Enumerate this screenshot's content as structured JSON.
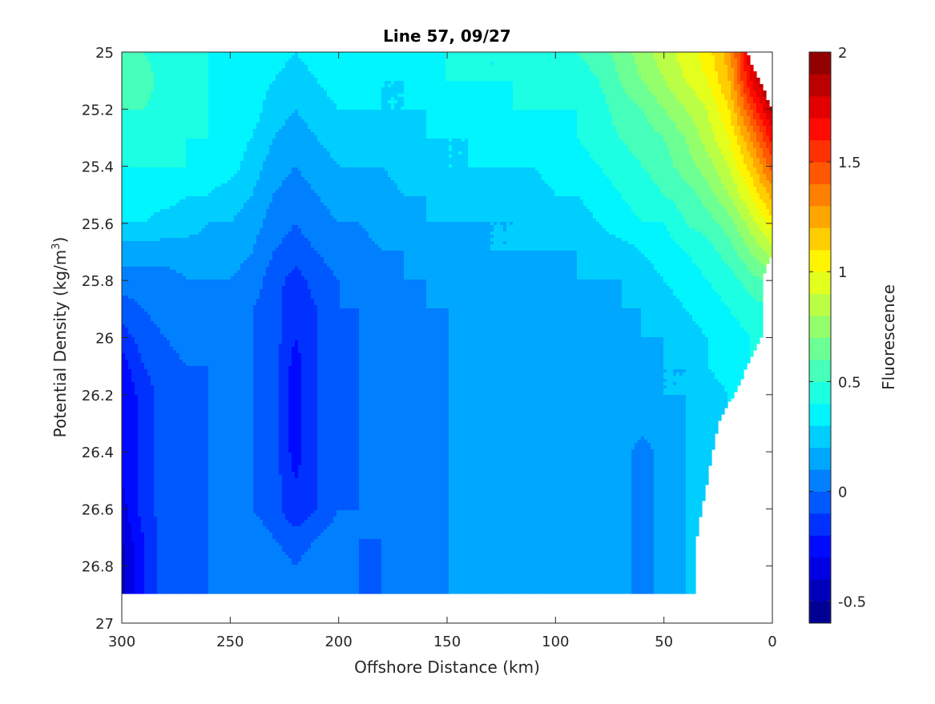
{
  "chart_data": {
    "type": "heatmap",
    "subtype": "filled-contour",
    "title": "Line 57, 09/27",
    "xlabel": "Offshore Distance (km)",
    "ylabel_prefix": "Potential Density (kg/m",
    "ylabel_sup": "3",
    "ylabel_suffix": ")",
    "colorbar_label": "Fluorescence",
    "colormap": "jet",
    "xlim": [
      300,
      0
    ],
    "ylim": [
      25,
      27
    ],
    "y_reversed": true,
    "x_ticks": [
      300,
      250,
      200,
      150,
      100,
      50,
      0
    ],
    "y_ticks": [
      "25",
      "25.2",
      "25.4",
      "25.6",
      "25.8",
      "26",
      "26.2",
      "26.4",
      "26.6",
      "26.8",
      "27"
    ],
    "colorbar_range": [
      -0.6,
      2.0
    ],
    "colorbar_ticks": [
      "-0.5",
      "0",
      "0.5",
      "1",
      "1.5",
      "2"
    ],
    "colorbar_tick_values": [
      -0.5,
      0,
      0.5,
      1,
      1.5,
      2
    ],
    "level_step": 0.1,
    "data_extent_x": [
      0,
      300
    ],
    "data_extent_y": [
      25,
      26.9
    ],
    "x": [
      300,
      290,
      280,
      270,
      260,
      250,
      240,
      230,
      220,
      210,
      200,
      190,
      180,
      170,
      160,
      150,
      140,
      130,
      120,
      110,
      100,
      90,
      80,
      70,
      60,
      50,
      40,
      30,
      20,
      10,
      0
    ],
    "y": [
      25.0,
      25.1,
      25.2,
      25.3,
      25.4,
      25.5,
      25.6,
      25.7,
      25.8,
      25.9,
      26.0,
      26.1,
      26.2,
      26.3,
      26.4,
      26.5,
      26.6,
      26.7,
      26.8,
      26.9
    ],
    "z": [
      [
        0.55,
        0.5,
        0.45,
        0.45,
        0.4,
        0.35,
        0.35,
        0.35,
        0.3,
        0.35,
        0.4,
        0.4,
        0.35,
        0.35,
        0.4,
        0.4,
        0.4,
        0.4,
        0.4,
        0.45,
        0.45,
        0.5,
        0.55,
        0.65,
        0.75,
        0.85,
        0.95,
        1.05,
        1.25,
        1.8,
        2.0
      ],
      [
        0.55,
        0.55,
        0.45,
        0.45,
        0.4,
        0.35,
        0.35,
        0.3,
        0.25,
        0.3,
        0.35,
        0.35,
        0.3,
        0.3,
        0.35,
        0.4,
        0.4,
        0.4,
        0.4,
        0.4,
        0.45,
        0.45,
        0.5,
        0.6,
        0.7,
        0.8,
        0.9,
        1.0,
        1.2,
        1.7,
        2.0
      ],
      [
        0.5,
        0.5,
        0.45,
        0.45,
        0.4,
        0.35,
        0.35,
        0.25,
        0.2,
        0.25,
        0.3,
        0.3,
        0.3,
        0.3,
        0.3,
        0.35,
        0.35,
        0.35,
        0.4,
        0.4,
        0.4,
        0.4,
        0.45,
        0.55,
        0.6,
        0.7,
        0.8,
        0.9,
        1.1,
        1.5,
        1.85
      ],
      [
        0.45,
        0.45,
        0.45,
        0.4,
        0.4,
        0.35,
        0.3,
        0.2,
        0.15,
        0.2,
        0.25,
        0.25,
        0.25,
        0.25,
        0.3,
        0.3,
        0.3,
        0.35,
        0.35,
        0.35,
        0.35,
        0.4,
        0.45,
        0.5,
        0.55,
        0.6,
        0.7,
        0.85,
        1.0,
        1.3,
        1.65
      ],
      [
        0.4,
        0.4,
        0.4,
        0.4,
        0.35,
        0.35,
        0.25,
        0.15,
        0.1,
        0.15,
        0.2,
        0.2,
        0.2,
        0.25,
        0.25,
        0.3,
        0.3,
        0.3,
        0.3,
        0.3,
        0.35,
        0.35,
        0.4,
        0.45,
        0.5,
        0.55,
        0.65,
        0.75,
        0.9,
        1.15,
        1.45
      ],
      [
        0.35,
        0.35,
        0.35,
        0.3,
        0.3,
        0.25,
        0.2,
        0.1,
        0.05,
        0.1,
        0.15,
        0.15,
        0.15,
        0.2,
        0.2,
        0.25,
        0.25,
        0.25,
        0.25,
        0.25,
        0.3,
        0.3,
        0.35,
        0.4,
        0.45,
        0.5,
        0.55,
        0.65,
        0.8,
        1.0,
        1.25
      ],
      [
        0.3,
        0.3,
        0.25,
        0.25,
        0.2,
        0.2,
        0.15,
        0.05,
        0.0,
        0.05,
        0.1,
        0.1,
        0.15,
        0.15,
        0.2,
        0.2,
        0.2,
        0.2,
        0.2,
        0.25,
        0.25,
        0.25,
        0.3,
        0.35,
        0.4,
        0.4,
        0.5,
        0.55,
        0.65,
        0.85,
        1.05
      ],
      [
        0.15,
        0.15,
        0.15,
        0.15,
        0.15,
        0.15,
        0.1,
        0.0,
        -0.05,
        0.0,
        0.05,
        0.05,
        0.1,
        0.1,
        0.15,
        0.15,
        0.15,
        0.2,
        0.2,
        0.2,
        0.2,
        0.2,
        0.25,
        0.25,
        0.3,
        0.35,
        0.4,
        0.45,
        0.55,
        0.7,
        0.85
      ],
      [
        0.05,
        0.05,
        0.05,
        0.1,
        0.1,
        0.1,
        0.05,
        -0.05,
        -0.15,
        -0.05,
        0.0,
        0.05,
        0.05,
        0.1,
        0.1,
        0.15,
        0.15,
        0.15,
        0.15,
        0.15,
        0.15,
        0.2,
        0.2,
        0.2,
        0.25,
        0.3,
        0.35,
        0.4,
        0.45,
        0.55,
        0.65
      ],
      [
        -0.05,
        0.0,
        0.05,
        0.05,
        0.05,
        0.05,
        0.0,
        -0.05,
        -0.2,
        -0.1,
        0.0,
        0.0,
        0.05,
        0.05,
        0.1,
        0.1,
        0.15,
        0.15,
        0.15,
        0.15,
        0.15,
        0.15,
        0.15,
        0.2,
        0.2,
        0.25,
        0.3,
        0.35,
        0.4,
        0.45,
        0.5
      ],
      [
        -0.15,
        -0.05,
        0.0,
        0.05,
        0.05,
        0.05,
        0.0,
        -0.05,
        -0.2,
        -0.1,
        0.0,
        0.0,
        0.05,
        0.05,
        0.1,
        0.1,
        0.15,
        0.15,
        0.15,
        0.15,
        0.15,
        0.15,
        0.15,
        0.15,
        0.2,
        0.2,
        0.25,
        0.3,
        0.35,
        0.4,
        0.45
      ],
      [
        -0.25,
        -0.1,
        -0.05,
        0.0,
        0.0,
        0.05,
        0.0,
        -0.05,
        -0.25,
        -0.1,
        0.0,
        0.0,
        0.05,
        0.05,
        0.05,
        0.1,
        0.15,
        0.15,
        0.15,
        0.15,
        0.15,
        0.15,
        0.15,
        0.15,
        0.15,
        0.2,
        0.2,
        0.3,
        0.35,
        0.4,
        0.4
      ],
      [
        -0.3,
        -0.15,
        -0.05,
        0.0,
        0.0,
        0.05,
        0.0,
        -0.05,
        -0.25,
        -0.1,
        0.0,
        0.0,
        0.05,
        0.05,
        0.05,
        0.1,
        0.15,
        0.15,
        0.15,
        0.15,
        0.15,
        0.15,
        0.15,
        0.15,
        0.15,
        0.2,
        0.2,
        0.25,
        0.3,
        0.35,
        0.4
      ],
      [
        -0.3,
        -0.15,
        -0.05,
        0.0,
        0.0,
        0.05,
        0.0,
        -0.05,
        -0.25,
        -0.1,
        0.0,
        0.0,
        0.05,
        0.05,
        0.05,
        0.1,
        0.15,
        0.15,
        0.15,
        0.15,
        0.15,
        0.15,
        0.15,
        0.15,
        0.15,
        0.15,
        0.2,
        0.25,
        0.3,
        0.35,
        0.35
      ],
      [
        -0.3,
        -0.15,
        -0.05,
        0.0,
        0.0,
        0.05,
        0.0,
        -0.05,
        -0.25,
        -0.1,
        0.0,
        0.0,
        0.05,
        0.05,
        0.05,
        0.1,
        0.15,
        0.15,
        0.15,
        0.15,
        0.15,
        0.15,
        0.15,
        0.15,
        0.05,
        0.15,
        0.2,
        0.25,
        0.3,
        0.3,
        0.35
      ],
      [
        -0.3,
        -0.15,
        -0.05,
        0.0,
        0.0,
        0.05,
        0.0,
        -0.05,
        -0.2,
        -0.1,
        0.0,
        0.0,
        0.05,
        0.05,
        0.05,
        0.1,
        0.15,
        0.15,
        0.15,
        0.15,
        0.15,
        0.15,
        0.15,
        0.15,
        0.05,
        0.15,
        0.2,
        0.25,
        0.3,
        0.3,
        0.35
      ],
      [
        -0.35,
        -0.15,
        -0.05,
        0.0,
        0.0,
        0.05,
        0.0,
        -0.05,
        -0.2,
        -0.1,
        0.0,
        0.0,
        0.05,
        0.05,
        0.05,
        0.1,
        0.15,
        0.15,
        0.15,
        0.15,
        0.15,
        0.15,
        0.15,
        0.15,
        0.05,
        0.15,
        0.2,
        0.25,
        0.3,
        0.3,
        0.35
      ],
      [
        -0.4,
        -0.2,
        -0.05,
        0.0,
        0.0,
        0.05,
        0.05,
        0.0,
        -0.05,
        0.0,
        0.05,
        0.0,
        0.0,
        0.05,
        0.05,
        0.1,
        0.15,
        0.15,
        0.15,
        0.15,
        0.1,
        0.15,
        0.15,
        0.15,
        0.05,
        0.15,
        0.2,
        0.25,
        0.3,
        0.3,
        0.35
      ],
      [
        -0.45,
        -0.2,
        -0.05,
        0.0,
        0.0,
        0.05,
        0.05,
        0.05,
        0.0,
        0.05,
        0.05,
        0.0,
        0.0,
        0.05,
        0.1,
        0.1,
        0.15,
        0.15,
        0.15,
        0.15,
        0.1,
        0.15,
        0.15,
        0.15,
        0.05,
        0.15,
        0.2,
        0.25,
        0.3,
        0.3,
        0.35
      ],
      [
        -0.45,
        -0.2,
        -0.05,
        0.0,
        0.0,
        0.05,
        0.05,
        0.05,
        0.05,
        0.05,
        0.05,
        0.0,
        0.0,
        0.05,
        0.1,
        0.1,
        0.15,
        0.15,
        0.15,
        0.15,
        0.1,
        0.15,
        0.15,
        0.15,
        0.05,
        0.15,
        0.2,
        0.25,
        0.3,
        0.3,
        0.35
      ]
    ],
    "nan_mask_right_edge": [
      {
        "y": 25.0,
        "x_min": 12
      },
      {
        "y": 25.1,
        "x_min": 6
      },
      {
        "y": 25.2,
        "x_min": 0
      },
      {
        "y": 25.7,
        "x_min": 0
      },
      {
        "y": 25.8,
        "x_min": 5
      },
      {
        "y": 26.0,
        "x_min": 5
      },
      {
        "y": 26.2,
        "x_min": 18
      },
      {
        "y": 26.3,
        "x_min": 25
      },
      {
        "y": 26.5,
        "x_min": 30
      },
      {
        "y": 26.7,
        "x_min": 35
      },
      {
        "y": 26.9,
        "x_min": 35
      }
    ]
  }
}
